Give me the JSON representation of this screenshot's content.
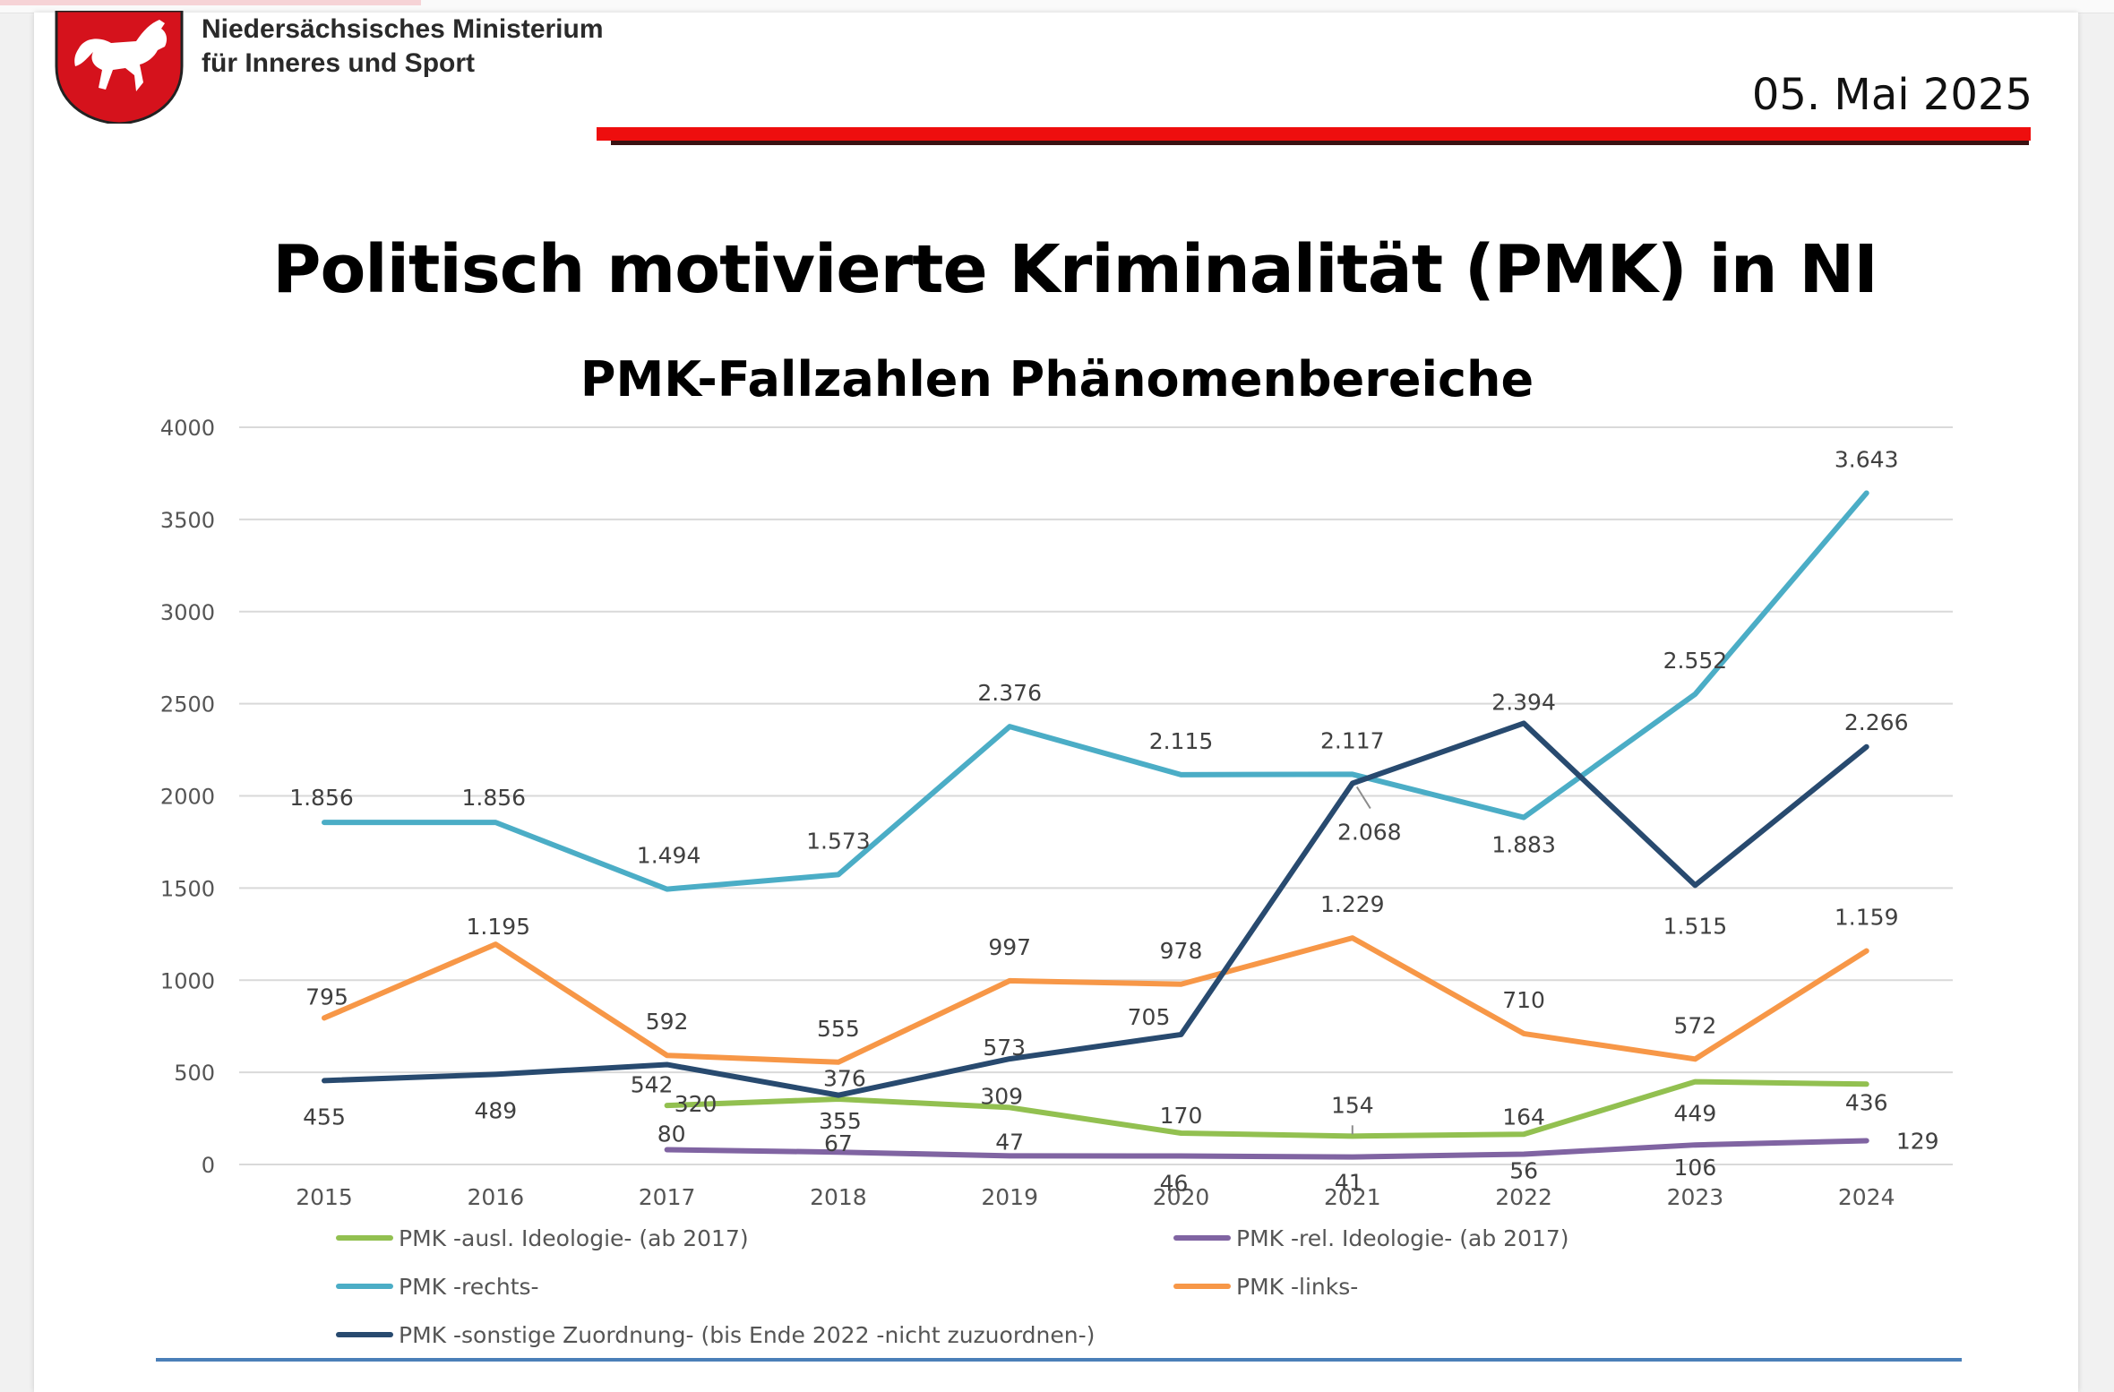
{
  "header": {
    "ministry_line1": "Niedersächsisches Ministerium",
    "ministry_line2": "für Inneres und Sport",
    "date": "05. Mai 2025",
    "colors": {
      "red_bar": "#ee0e0e",
      "crest_red": "#d5121c"
    }
  },
  "chart_data": {
    "type": "line",
    "title": "Politisch motivierte Kriminalität (PMK) in NI",
    "subtitle": "PMK-Fallzahlen Phänomenbereiche",
    "xlabel": "",
    "ylabel": "",
    "x": [
      "2015",
      "2016",
      "2017",
      "2018",
      "2019",
      "2020",
      "2021",
      "2022",
      "2023",
      "2024"
    ],
    "ylim": [
      0,
      4000
    ],
    "yticks": [
      "0",
      "500",
      "1000",
      "1500",
      "2000",
      "2500",
      "3000",
      "3500",
      "4000"
    ],
    "grid": true,
    "legend_position": "bottom",
    "series": [
      {
        "name": "PMK -ausl. Ideologie- (ab 2017)",
        "color": "#92c050",
        "values": [
          null,
          null,
          320,
          355,
          309,
          170,
          154,
          164,
          449,
          436
        ],
        "labels": [
          null,
          null,
          "320",
          "355",
          "309",
          "170",
          "154",
          "164",
          "449",
          "436"
        ]
      },
      {
        "name": "PMK -rel. Ideologie- (ab 2017)",
        "color": "#8064a2",
        "values": [
          null,
          null,
          80,
          67,
          47,
          46,
          41,
          56,
          106,
          129
        ],
        "labels": [
          null,
          null,
          "80",
          "67",
          "47",
          "46",
          "41",
          "56",
          "106",
          "129"
        ]
      },
      {
        "name": "PMK -rechts-",
        "color": "#4badc6",
        "values": [
          1856,
          1856,
          1494,
          1573,
          2376,
          2115,
          2117,
          1883,
          2552,
          3643
        ],
        "labels": [
          "1.856",
          "1.856",
          "1.494",
          "1.573",
          "2.376",
          "2.115",
          "2.117",
          "1.883",
          "2.552",
          "3.643"
        ]
      },
      {
        "name": "PMK -links-",
        "color": "#f79747",
        "values": [
          795,
          1195,
          592,
          555,
          997,
          978,
          1229,
          710,
          572,
          1159
        ],
        "labels": [
          "795",
          "1.195",
          "592",
          "555",
          "997",
          "978",
          "1.229",
          "710",
          "572",
          "1.159"
        ]
      },
      {
        "name": "PMK -sonstige Zuordnung- (bis Ende 2022 -nicht zuzuordnen-)",
        "color": "#284a6f",
        "values": [
          455,
          489,
          542,
          376,
          573,
          705,
          2068,
          2394,
          1515,
          2266
        ],
        "labels": [
          "455",
          "489",
          "542",
          "376",
          "573",
          "705",
          "2.068",
          "2.394",
          "1.515",
          "2.266"
        ]
      }
    ]
  }
}
